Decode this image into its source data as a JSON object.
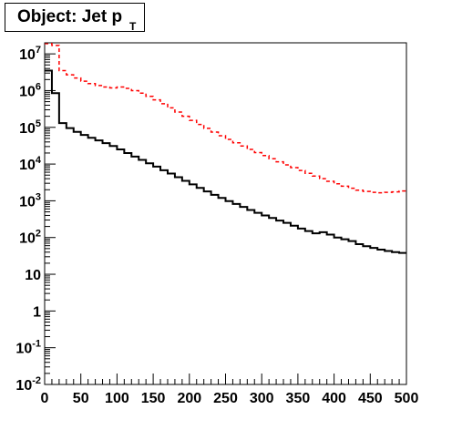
{
  "chart_data": {
    "type": "line",
    "title": "Object: Jet p",
    "title_subscript": "T",
    "x_tick_labels": [
      "0",
      "50",
      "100",
      "150",
      "200",
      "250",
      "300",
      "350",
      "400",
      "450",
      "500"
    ],
    "y_tick_labels": [
      {
        "value": 0.01,
        "base": "10",
        "exp": "-2"
      },
      {
        "value": 0.1,
        "base": "10",
        "exp": "-1"
      },
      {
        "value": 1,
        "base": "1",
        "exp": ""
      },
      {
        "value": 10,
        "base": "10",
        "exp": ""
      },
      {
        "value": 100,
        "base": "10",
        "exp": "2"
      },
      {
        "value": 1000,
        "base": "10",
        "exp": "3"
      },
      {
        "value": 10000,
        "base": "10",
        "exp": "4"
      },
      {
        "value": 100000,
        "base": "10",
        "exp": "5"
      },
      {
        "value": 1000000,
        "base": "10",
        "exp": "6"
      },
      {
        "value": 10000000,
        "base": "10",
        "exp": "7"
      }
    ],
    "xlim": [
      0,
      500
    ],
    "ylim": [
      0.01,
      20000000
    ],
    "y_scale": "log",
    "grid": false,
    "bin_width": 10,
    "series": [
      {
        "color": "#000000",
        "style": "solid-step",
        "values": [
          3500000,
          850000,
          130000,
          95000,
          75000,
          62000,
          52000,
          44000,
          37000,
          31000,
          25000,
          20000,
          16000,
          13000,
          10500,
          8500,
          6800,
          5500,
          4400,
          3500,
          2800,
          2250,
          1800,
          1450,
          1200,
          980,
          820,
          680,
          560,
          470,
          400,
          340,
          290,
          250,
          210,
          175,
          150,
          130,
          140,
          120,
          100,
          90,
          80,
          66,
          58,
          52,
          47,
          43,
          40,
          38
        ]
      },
      {
        "color": "#ff0000",
        "style": "dashed-step",
        "values": [
          19000000,
          17000000,
          3500000,
          2700000,
          2200000,
          1800000,
          1550000,
          1380000,
          1250000,
          1180000,
          1250000,
          1150000,
          1000000,
          850000,
          700000,
          560000,
          440000,
          340000,
          260000,
          200000,
          155000,
          120000,
          94000,
          74000,
          59000,
          47000,
          38000,
          31000,
          25000,
          20500,
          17000,
          14000,
          11500,
          9500,
          8000,
          6700,
          5600,
          4700,
          4000,
          3400,
          2900,
          2500,
          2200,
          1950,
          1800,
          1700,
          1650,
          1700,
          1750,
          1850
        ]
      }
    ]
  }
}
